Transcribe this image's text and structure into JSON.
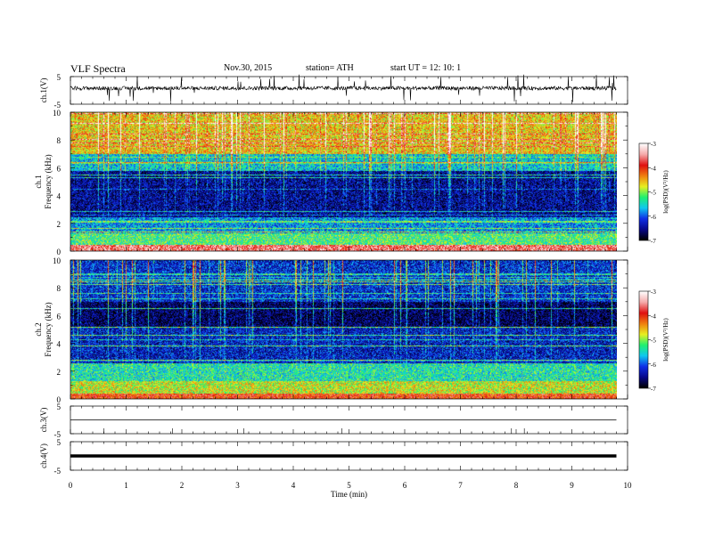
{
  "header": {
    "title": "VLF  Spectra",
    "date": "Nov.30, 2015",
    "station": "station= ATH",
    "start": "start  UT  =    12: 10: 1"
  },
  "chart_data": [
    {
      "type": "line",
      "panel": "ch1-waveform",
      "ylabel": "ch.1(V)",
      "yticks": [
        "5",
        "-5"
      ],
      "ylim": [
        -5,
        5
      ],
      "xlim": [
        0,
        10
      ],
      "data_end_min": 9.8,
      "baseline_v": 0.8,
      "trace_color": "#000000"
    },
    {
      "type": "heatmap",
      "panel": "ch1-spectrogram",
      "ylabel": [
        "ch.1",
        "Frequency  (kHz)"
      ],
      "xlim": [
        0,
        10
      ],
      "ylim": [
        0,
        10
      ],
      "yticks": [
        "0",
        "2",
        "4",
        "6",
        "8",
        "10"
      ],
      "data_end_min": 9.8,
      "colorbar": {
        "label": "log(PSD)(V²/Hz)",
        "min": -7,
        "max": -3,
        "ticks": [
          "-3",
          "-4",
          "-5",
          "-6",
          "-7"
        ]
      },
      "bands": [
        {
          "f": [
            0,
            0.5
          ],
          "level": -3.6
        },
        {
          "f": [
            0.5,
            1.3
          ],
          "level": -5.2
        },
        {
          "f": [
            1.3,
            2.5
          ],
          "level": -5.8
        },
        {
          "f": [
            2.5,
            5.8
          ],
          "level": -6.5
        },
        {
          "f": [
            5.8,
            7.0
          ],
          "level": -5.6
        },
        {
          "f": [
            7.0,
            10.0
          ],
          "level": -4.6
        }
      ]
    },
    {
      "type": "heatmap",
      "panel": "ch2-spectrogram",
      "ylabel": [
        "ch.2",
        "Frequency  (kHz)"
      ],
      "xlim": [
        0,
        10
      ],
      "ylim": [
        0,
        10
      ],
      "yticks": [
        "0",
        "2",
        "4",
        "6",
        "8",
        "10"
      ],
      "data_end_min": 9.8,
      "colorbar": {
        "label": "log(PSD)(V²/Hz)",
        "min": -7,
        "max": -3,
        "ticks": [
          "-3",
          "-4",
          "-5",
          "-6",
          "-7"
        ]
      },
      "bands": [
        {
          "f": [
            0,
            0.4
          ],
          "level": -4.0
        },
        {
          "f": [
            0.4,
            1.3
          ],
          "level": -4.8
        },
        {
          "f": [
            1.3,
            2.6
          ],
          "level": -5.4
        },
        {
          "f": [
            2.6,
            5.2
          ],
          "level": -6.3
        },
        {
          "f": [
            5.2,
            7.0
          ],
          "level": -6.7
        },
        {
          "f": [
            7.0,
            10.0
          ],
          "level": -6.2
        }
      ]
    },
    {
      "type": "line",
      "panel": "ch3-waveform",
      "ylabel": "ch.3(V)",
      "yticks": [
        "5",
        "-5"
      ],
      "ylim": [
        -5,
        5
      ],
      "xlim": [
        0,
        10
      ],
      "data_end_min": 9.8,
      "baseline_v": 0.0
    },
    {
      "type": "line",
      "panel": "ch4-waveform",
      "ylabel": "ch.4(V)",
      "yticks": [
        "5",
        "-5"
      ],
      "ylim": [
        -5,
        5
      ],
      "xlim": [
        0,
        10
      ],
      "data_end_min": 9.8,
      "baseline_v": 0.0
    }
  ],
  "xaxis": {
    "label": "Time  (min)",
    "ticks": [
      "0",
      "1",
      "2",
      "3",
      "4",
      "5",
      "6",
      "7",
      "8",
      "9",
      "10"
    ]
  },
  "colormap": [
    "#000000",
    "#08088a",
    "#1030e8",
    "#10c8f0",
    "#20f070",
    "#e8f020",
    "#f08010",
    "#e01010",
    "#f5a8a8",
    "#ffffff"
  ]
}
